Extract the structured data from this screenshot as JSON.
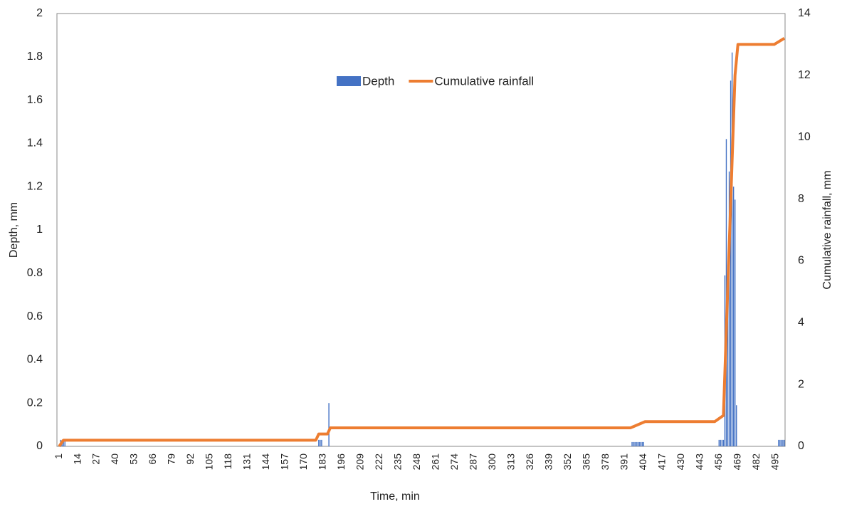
{
  "chart_data": {
    "type": "bar",
    "x_label": "Time, min",
    "y_label": "Depth, mm",
    "y2_label": "Cumulative rainfall, mm",
    "xlim": [
      -0.5,
      501.5
    ],
    "xticks": [
      1,
      14,
      27,
      40,
      53,
      66,
      79,
      92,
      105,
      118,
      131,
      144,
      157,
      170,
      183,
      196,
      209,
      222,
      235,
      248,
      261,
      274,
      287,
      300,
      313,
      326,
      339,
      352,
      365,
      378,
      391,
      404,
      417,
      430,
      443,
      456,
      469,
      482,
      495
    ],
    "ylim": [
      0,
      2
    ],
    "yticks": [
      0,
      0.2,
      0.4,
      0.6,
      0.8,
      1,
      1.2,
      1.4,
      1.6,
      1.8,
      2
    ],
    "y2lim": [
      0,
      14
    ],
    "y2ticks": [
      0,
      2,
      4,
      6,
      8,
      10,
      12,
      14
    ],
    "grid": false,
    "legend": "top",
    "series": [
      {
        "name": "Depth",
        "type": "bar",
        "color": "#4472c4",
        "x": [
          2,
          3,
          4,
          5,
          180,
          181,
          182,
          187,
          396,
          397,
          398,
          399,
          400,
          401,
          402,
          403,
          404,
          456,
          457,
          458,
          459,
          460,
          461,
          462,
          463,
          464,
          465,
          466,
          467,
          468,
          497,
          498,
          499,
          500,
          501
        ],
        "values": [
          0.03,
          0.03,
          0.03,
          0.03,
          0.03,
          0.03,
          0.03,
          0.2,
          0.02,
          0.02,
          0.02,
          0.02,
          0.02,
          0.02,
          0.02,
          0.02,
          0.02,
          0.03,
          0.03,
          0.03,
          0.03,
          0.79,
          1.42,
          0.84,
          1.27,
          1.69,
          1.82,
          1.2,
          1.14,
          0.19,
          0.03,
          0.03,
          0.03,
          0.03,
          0.03
        ]
      },
      {
        "name": "Cumulative rainfall",
        "type": "line",
        "axis": "y2",
        "color": "#ed7d31",
        "x": [
          1,
          4,
          178,
          180,
          186,
          188,
          395,
          405,
          453,
          459,
          467,
          469,
          494,
          501
        ],
        "values": [
          0,
          0.2,
          0.2,
          0.4,
          0.4,
          0.6,
          0.6,
          0.8,
          0.8,
          1,
          12,
          13,
          13,
          13.2
        ]
      }
    ]
  }
}
